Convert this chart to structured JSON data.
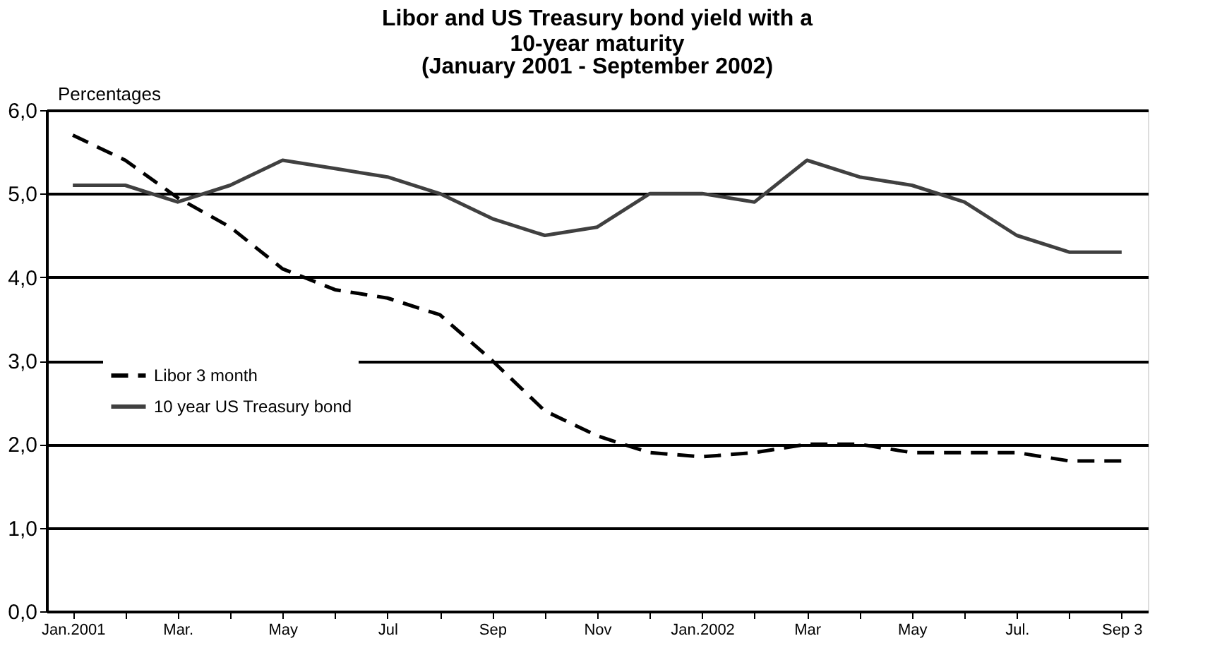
{
  "chart_data": {
    "type": "line",
    "title": "Libor and US Treasury bond yield with a 10-year maturity",
    "subtitle": "(January 2001 - September 2002)",
    "ylabel": "Percentages",
    "categories": [
      "Jan.2001",
      null,
      "Mar.",
      null,
      "May",
      null,
      "Jul",
      null,
      "Sep",
      null,
      "Nov",
      null,
      "Jan.2002",
      null,
      "Mar",
      null,
      "May",
      null,
      "Jul.",
      null,
      "Sep 3"
    ],
    "series": [
      {
        "name": "Libor 3 month",
        "color": "#000000",
        "line_style": "dashed",
        "values": [
          5.7,
          5.4,
          4.95,
          4.6,
          4.1,
          3.85,
          3.75,
          3.55,
          3.0,
          2.4,
          2.1,
          1.9,
          1.85,
          1.9,
          2.0,
          2.0,
          1.9,
          1.9,
          1.9,
          1.8,
          1.8
        ]
      },
      {
        "name": "10 year US Treasury bond",
        "color": "#404040",
        "line_style": "solid",
        "values": [
          5.1,
          5.1,
          4.9,
          5.1,
          5.4,
          5.3,
          5.2,
          5.0,
          4.7,
          4.5,
          4.6,
          5.0,
          5.0,
          4.9,
          5.4,
          5.2,
          5.1,
          4.9,
          4.5,
          4.3,
          4.3
        ]
      }
    ],
    "ylim": [
      0,
      6
    ],
    "yticks": [
      {
        "value": 0,
        "label": "0,0"
      },
      {
        "value": 1,
        "label": "1,0"
      },
      {
        "value": 2,
        "label": "2,0"
      },
      {
        "value": 3,
        "label": "3,0"
      },
      {
        "value": 4,
        "label": "4,0"
      },
      {
        "value": 5,
        "label": "5,0"
      },
      {
        "value": 6,
        "label": "6,0"
      }
    ],
    "grid": "y",
    "legend": "left",
    "marker": "none"
  }
}
